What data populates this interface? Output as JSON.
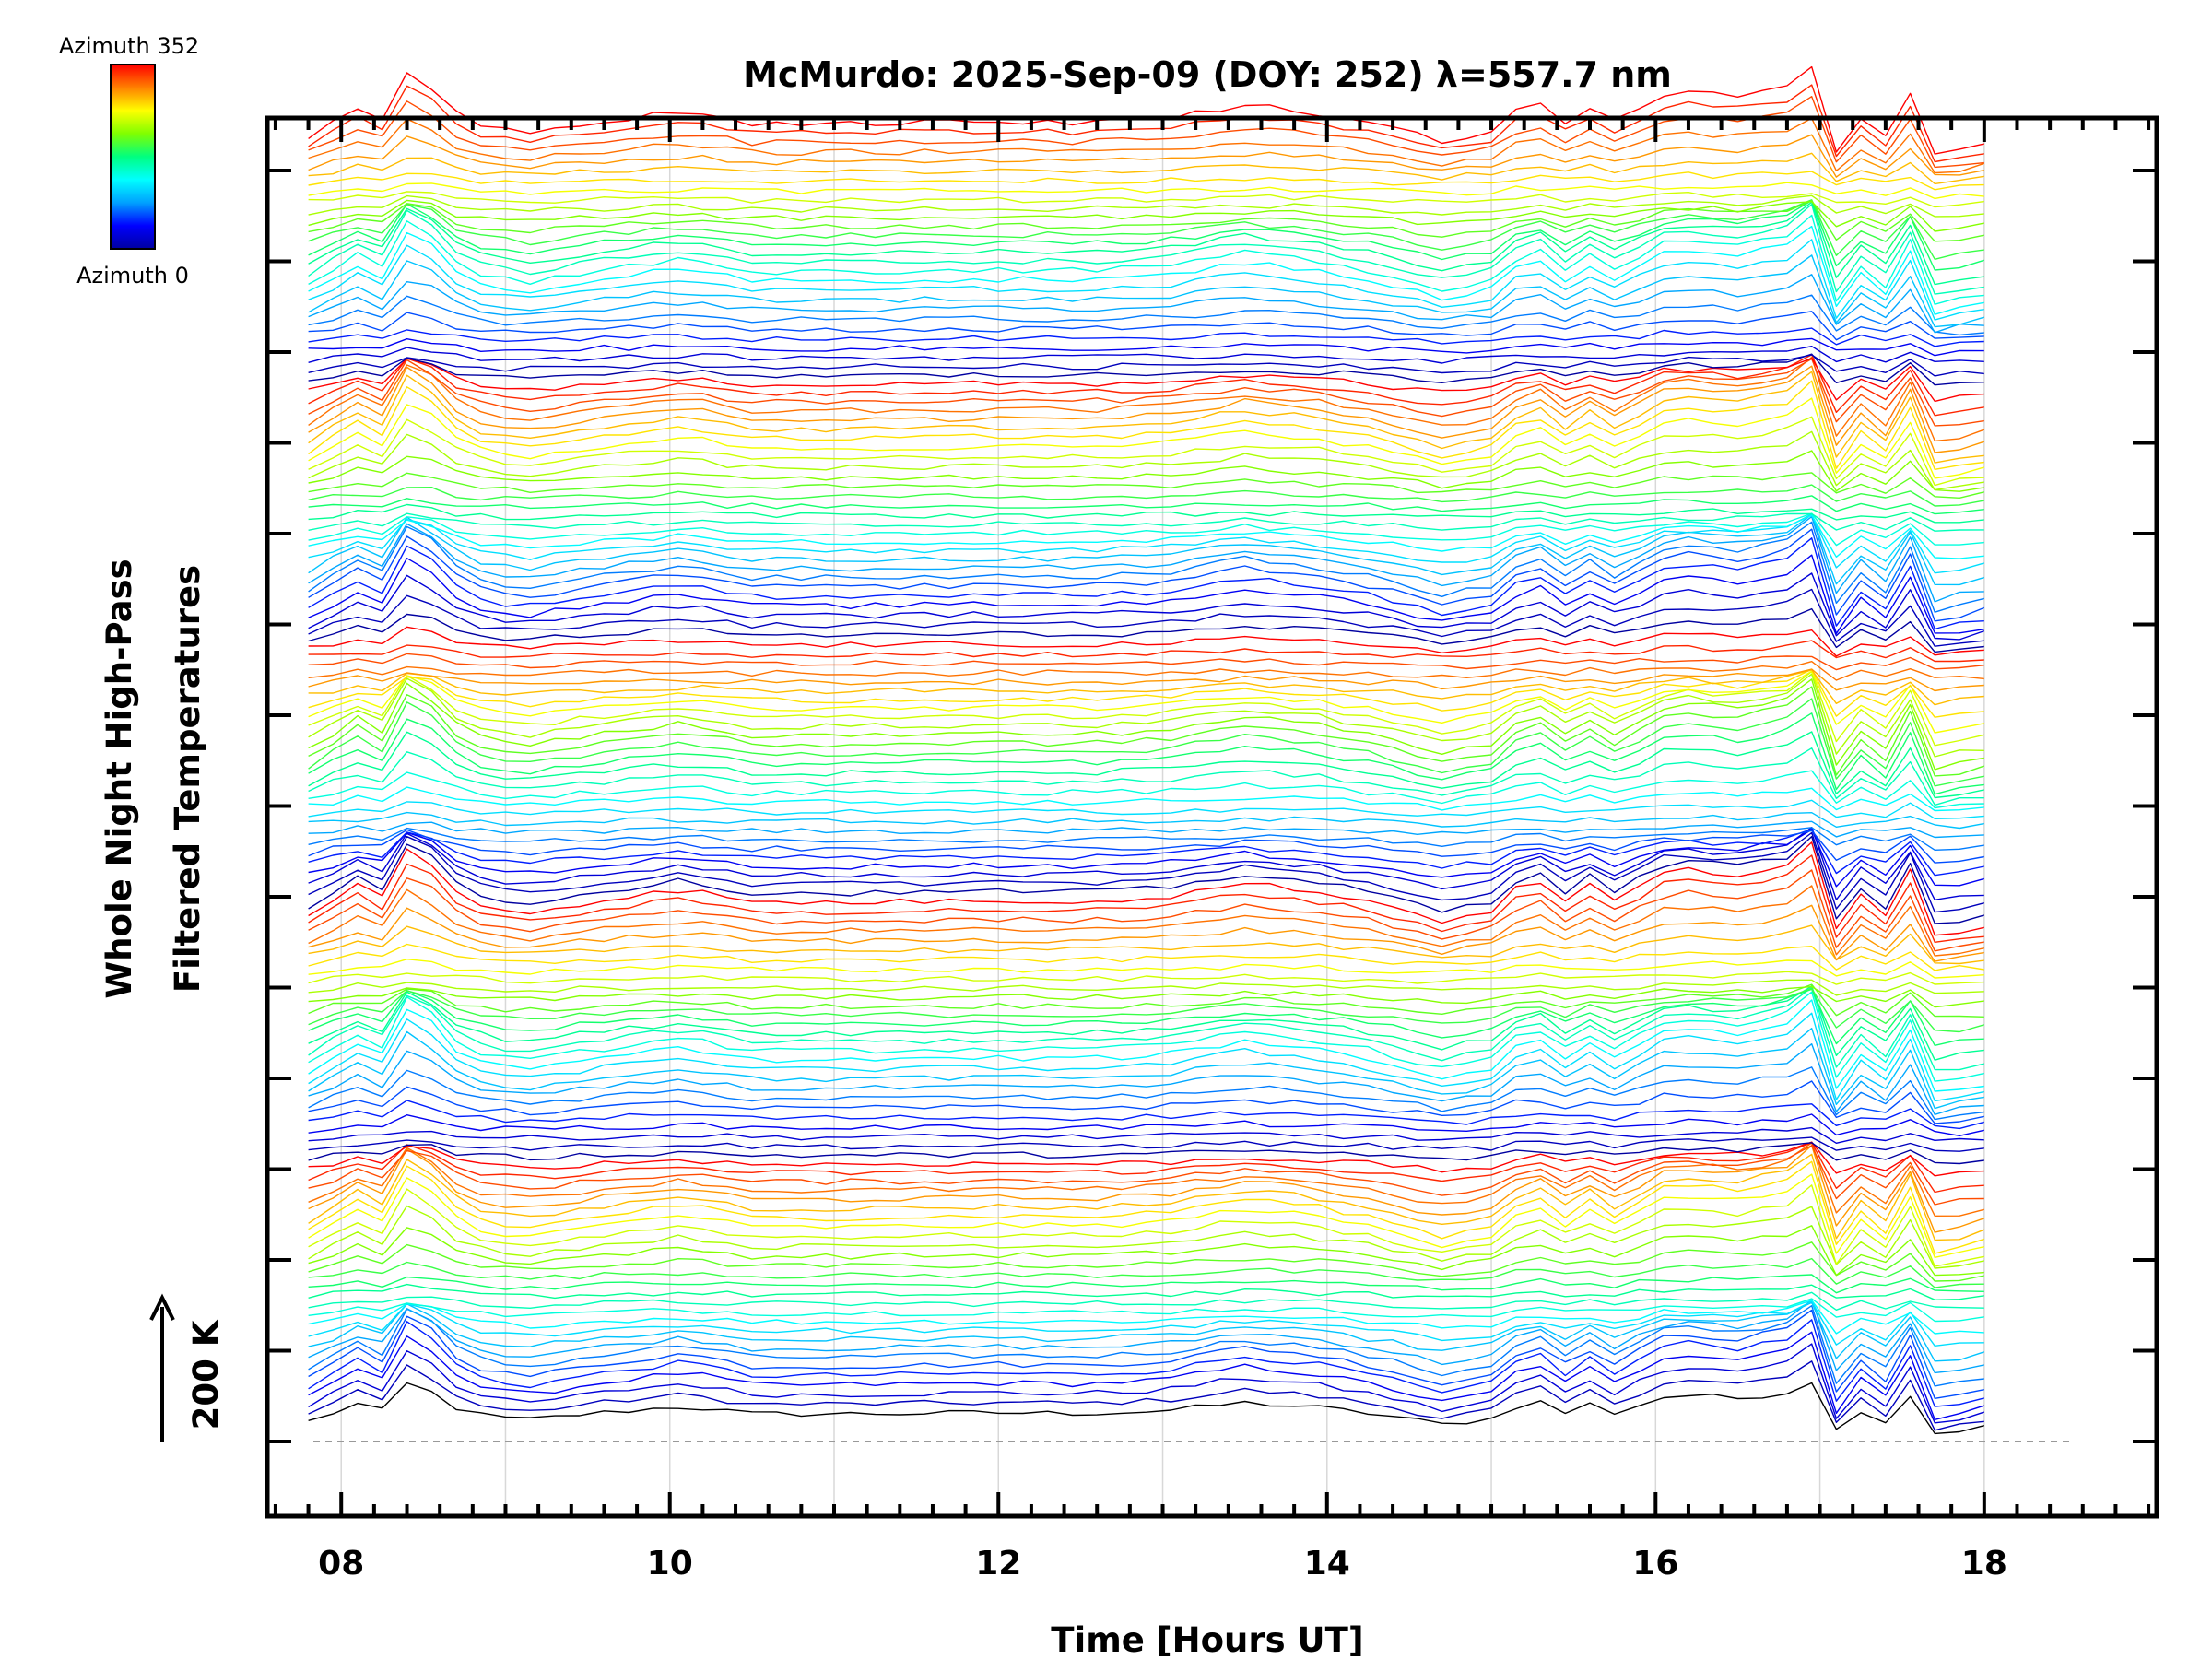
{
  "chart_data": {
    "type": "line",
    "title": "McMurdo: 2025-Sep-09 (DOY: 252) λ=557.7 nm",
    "xlabel": "Time [Hours UT]",
    "ylabel_line1": "Whole Night High-Pass",
    "ylabel_line2": "Filtered Temperatures",
    "scale_label": "200 K",
    "xlim": [
      7.55,
      19.05
    ],
    "x_ticks": [
      8,
      10,
      12,
      14,
      16,
      18
    ],
    "x_tick_labels": [
      "08",
      "10",
      "12",
      "14",
      "16",
      "18"
    ],
    "x_gridlines": [
      8,
      9,
      10,
      11,
      12,
      13,
      14,
      15,
      16,
      17,
      18
    ],
    "data_range_hours": [
      7.8,
      18.0
    ],
    "y_units": "K (stacked traces, offset per azimuth)",
    "n_traces": 140,
    "stack_groups": 5,
    "azimuth_min": 0,
    "azimuth_max": 352,
    "azimuth_step": 10,
    "colorbar": {
      "top_label": "Azimuth 352",
      "bottom_label": "Azimuth 0",
      "colormap": "rainbow",
      "stops": [
        "#0000a0",
        "#0000ff",
        "#00a0ff",
        "#00ffff",
        "#00ff80",
        "#80ff00",
        "#ffff00",
        "#ff8000",
        "#ff0000"
      ]
    },
    "common_profile": {
      "hours": [
        7.8,
        8.1,
        8.25,
        8.45,
        8.55,
        8.75,
        9.1,
        9.5,
        9.9,
        10.1,
        10.5,
        11.0,
        11.5,
        12.0,
        12.5,
        13.0,
        13.5,
        13.9,
        14.3,
        14.7,
        15.0,
        15.25,
        15.45,
        15.65,
        15.8,
        15.95,
        16.2,
        16.5,
        16.8,
        16.95,
        17.1,
        17.25,
        17.4,
        17.55,
        17.7,
        18.0
      ],
      "relative_K": [
        -10,
        20,
        8,
        70,
        40,
        5,
        -8,
        3,
        12,
        16,
        3,
        3,
        4,
        5,
        4,
        8,
        22,
        15,
        3,
        -15,
        -5,
        30,
        5,
        25,
        -5,
        30,
        35,
        30,
        40,
        60,
        -25,
        10,
        -10,
        35,
        -30,
        -20
      ]
    }
  }
}
